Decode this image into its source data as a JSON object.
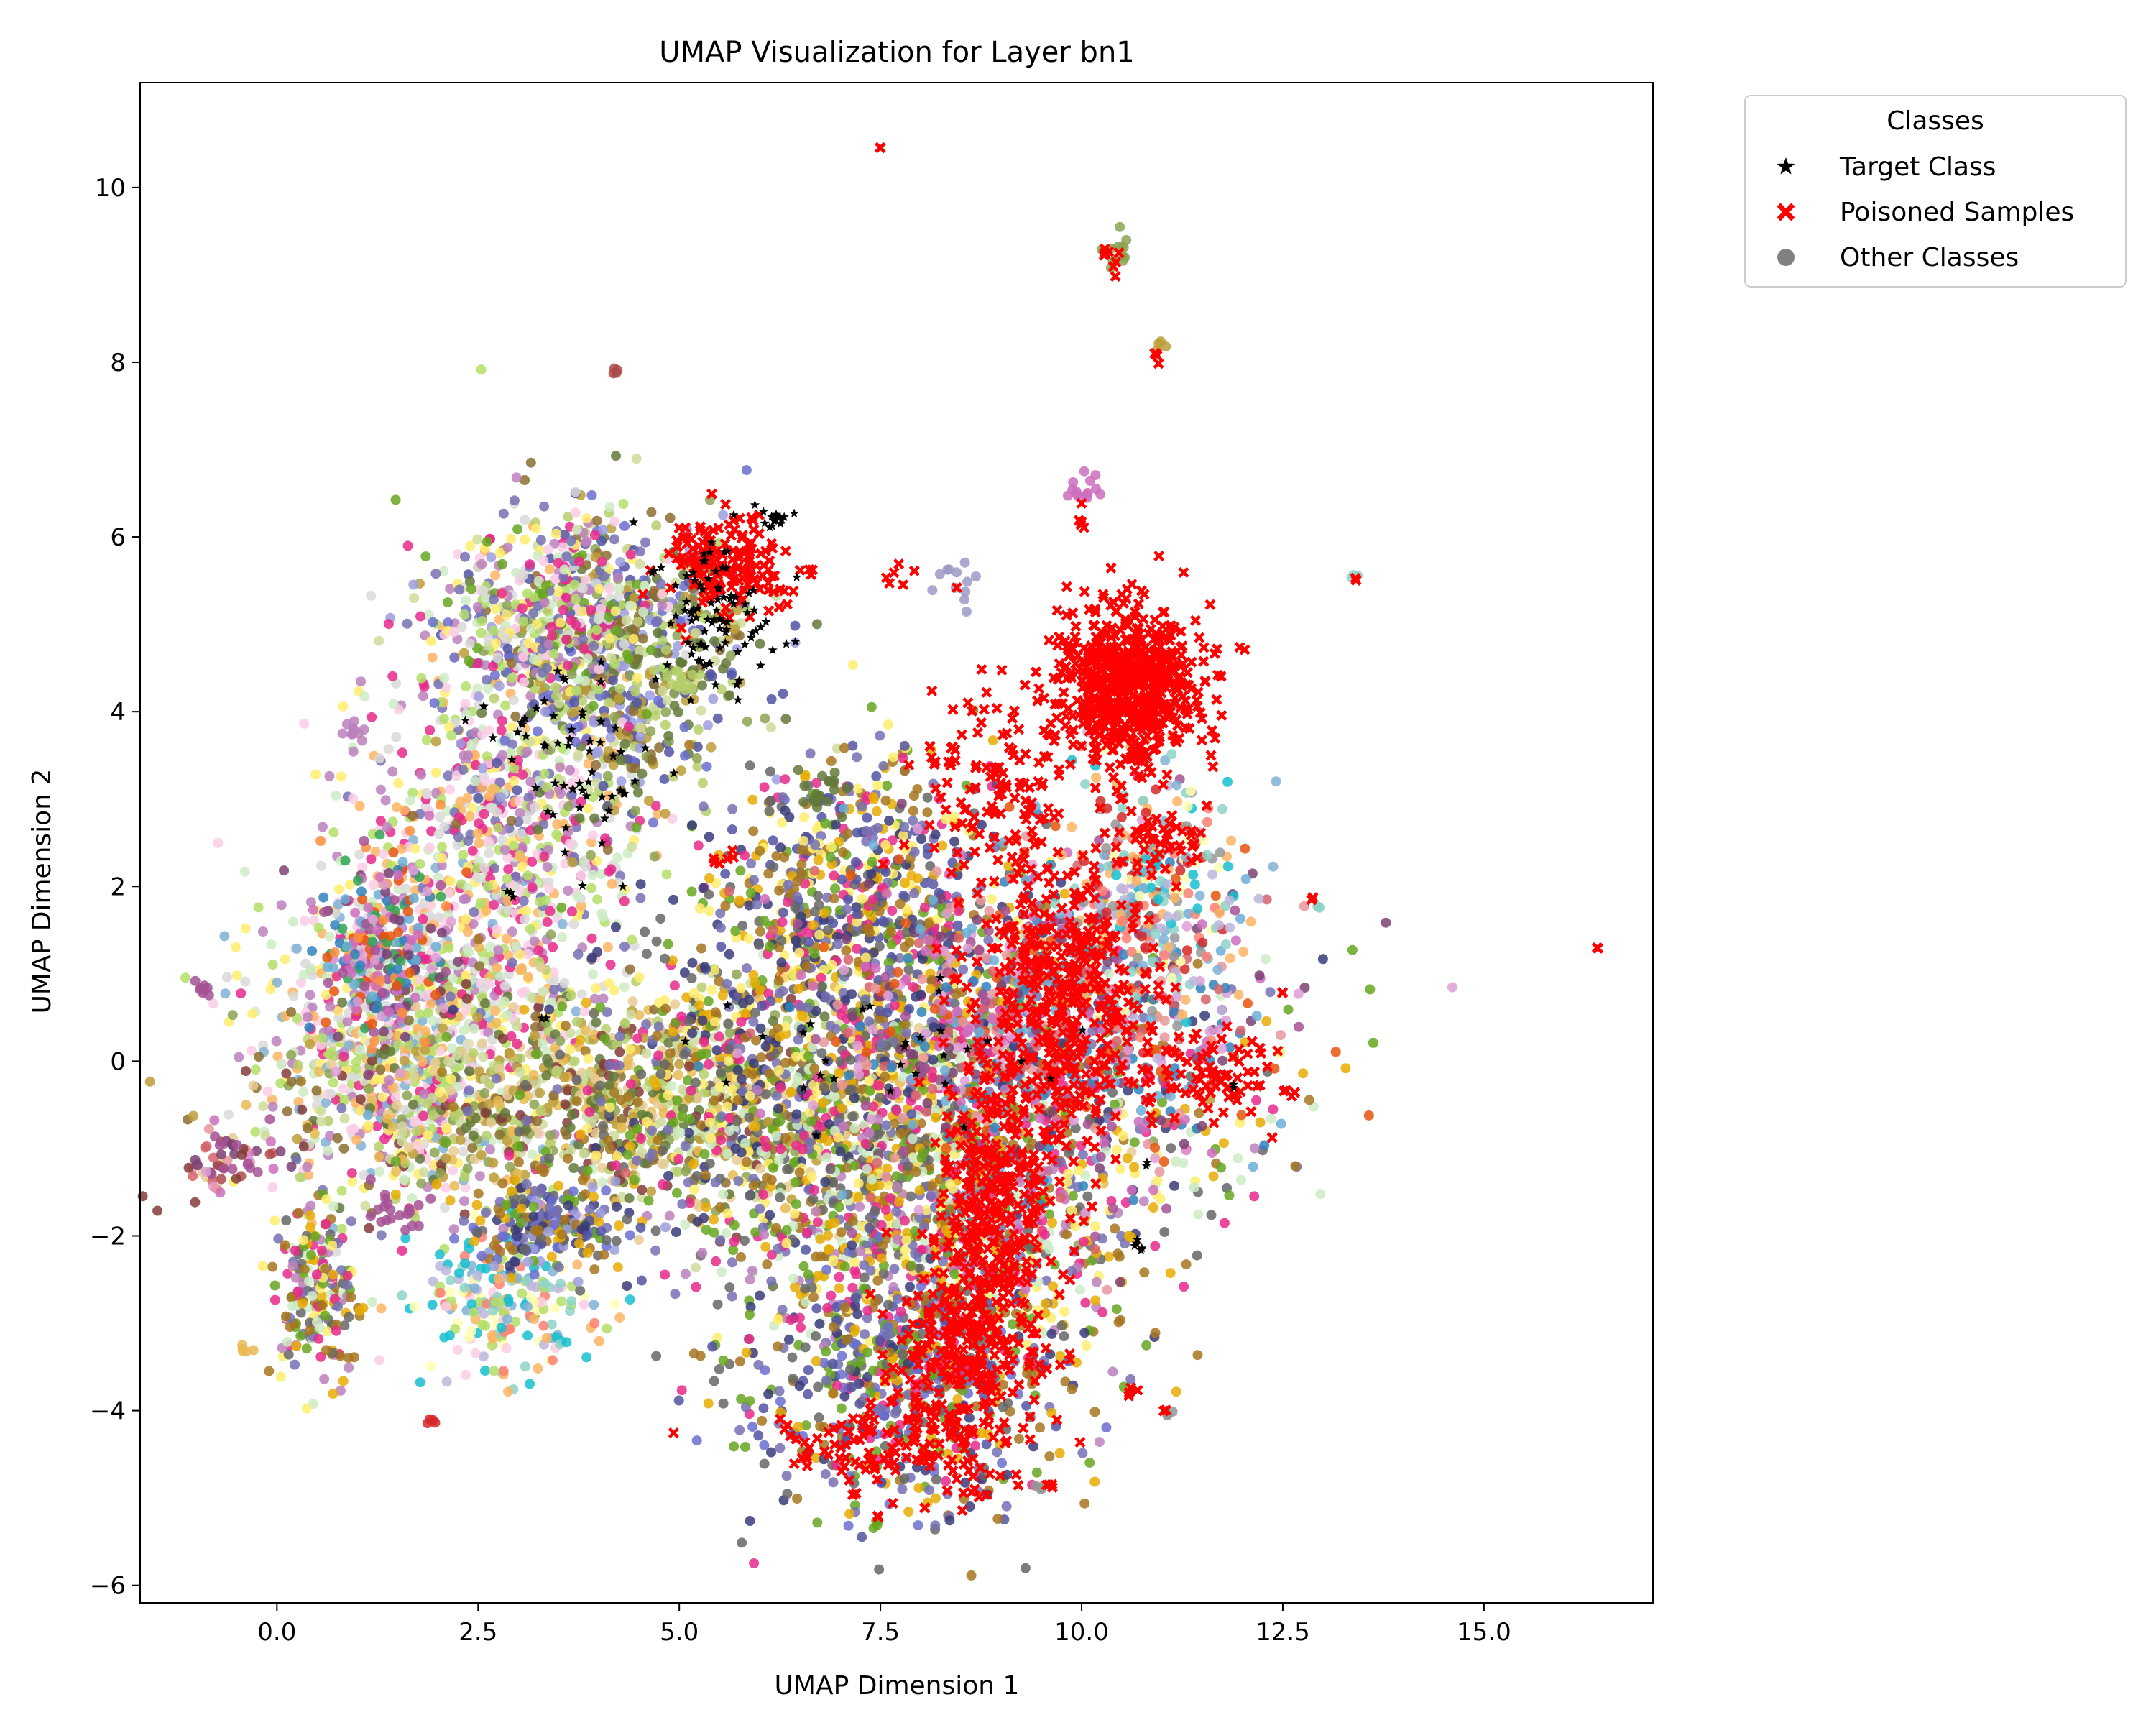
{
  "chart_data": {
    "type": "scatter",
    "title": "UMAP Visualization for Layer bn1",
    "xlabel": "UMAP Dimension 1",
    "ylabel": "UMAP Dimension 2",
    "xlim": [
      -1.7,
      17.1
    ],
    "ylim": [
      -6.2,
      11.2
    ],
    "xticks": [
      0.0,
      2.5,
      5.0,
      7.5,
      10.0,
      12.5,
      15.0
    ],
    "xtick_labels": [
      "0.0",
      "2.5",
      "5.0",
      "7.5",
      "10.0",
      "12.5",
      "15.0"
    ],
    "yticks": [
      -6,
      -4,
      -2,
      0,
      2,
      4,
      6,
      8,
      10
    ],
    "ytick_labels": [
      "−6",
      "−4",
      "−2",
      "0",
      "2",
      "4",
      "6",
      "8",
      "10"
    ],
    "grid": false,
    "legend": {
      "title": "Classes",
      "placement": "outside-top-right",
      "entries": [
        {
          "label": "Target Class",
          "marker": "star",
          "color": "#000000"
        },
        {
          "label": "Poisoned Samples",
          "marker": "x",
          "color": "#ff0000"
        },
        {
          "label": "Other Classes",
          "marker": "circle",
          "color": "#808080"
        }
      ]
    },
    "other_classes_palette": [
      "#bcb6dc",
      "#8dd3c7",
      "#ffffb3",
      "#fb8072",
      "#80b1d3",
      "#fdb462",
      "#b3de69",
      "#fccde5",
      "#d9d9d9",
      "#bc80bd",
      "#ccebc5",
      "#ffed6f",
      "#e7298a",
      "#7570b3",
      "#66a61e",
      "#e6ab02",
      "#a6761d",
      "#666666",
      "#393b79",
      "#5254a3",
      "#6b6ecf",
      "#9c9ede",
      "#637939",
      "#8ca252",
      "#b5cf6b",
      "#cedb9c",
      "#8c6d31",
      "#bd9e39",
      "#e7ba52",
      "#e7cb94",
      "#843c39",
      "#ad494a",
      "#d6616b",
      "#e7969c",
      "#7b4173",
      "#a55194",
      "#ce6dbd",
      "#de9ed6",
      "#3182bd",
      "#6baed6",
      "#e6550d",
      "#fd8d3c",
      "#31a354",
      "#74c476",
      "#756bb1",
      "#9e9ac8",
      "#636363",
      "#969696",
      "#d62728",
      "#17becf"
    ],
    "series": [
      {
        "name": "Other Classes",
        "color": "#808080",
        "clusters": [
          {
            "cx": 1.6,
            "cy": 0.3,
            "sx": 0.9,
            "sy": 1.0,
            "n": 900
          },
          {
            "cx": 2.8,
            "cy": 2.6,
            "sx": 0.8,
            "sy": 1.3,
            "n": 800
          },
          {
            "cx": 4.2,
            "cy": 4.5,
            "sx": 0.9,
            "sy": 0.8,
            "n": 700
          },
          {
            "cx": 3.5,
            "cy": 5.2,
            "sx": 0.7,
            "sy": 0.5,
            "n": 350
          },
          {
            "cx": 4.5,
            "cy": -0.5,
            "sx": 2.0,
            "sy": 0.6,
            "n": 1100
          },
          {
            "cx": 7.5,
            "cy": -0.3,
            "sx": 2.2,
            "sy": 0.9,
            "n": 1400
          },
          {
            "cx": 7.2,
            "cy": 1.8,
            "sx": 1.0,
            "sy": 0.9,
            "n": 700
          },
          {
            "cx": 8.2,
            "cy": -2.0,
            "sx": 1.4,
            "sy": 0.8,
            "n": 700
          },
          {
            "cx": 7.8,
            "cy": -3.6,
            "sx": 1.0,
            "sy": 0.8,
            "n": 600
          },
          {
            "cx": 9.5,
            "cy": 0.5,
            "sx": 1.3,
            "sy": 1.0,
            "n": 700
          },
          {
            "cx": 10.8,
            "cy": 1.9,
            "sx": 0.6,
            "sy": 0.8,
            "n": 300
          },
          {
            "cx": 0.5,
            "cy": -2.6,
            "sx": 0.25,
            "sy": 0.5,
            "n": 200
          },
          {
            "cx": 2.9,
            "cy": -2.8,
            "sx": 0.5,
            "sy": 0.4,
            "n": 220
          },
          {
            "cx": 3.4,
            "cy": -1.9,
            "sx": 0.5,
            "sy": 0.25,
            "n": 200
          },
          {
            "cx": -0.6,
            "cy": -1.1,
            "sx": 0.3,
            "sy": 0.2,
            "n": 60
          },
          {
            "cx": 1.3,
            "cy": 1.3,
            "sx": 0.4,
            "sy": 0.6,
            "n": 250
          }
        ],
        "small_groups": [
          [
            -0.9,
            0.85,
            0.05,
            0.05,
            8
          ],
          [
            0.95,
            3.75,
            0.1,
            0.1,
            12
          ],
          [
            4.2,
            7.9,
            0.03,
            0.03,
            4
          ],
          [
            10.45,
            9.3,
            0.15,
            0.15,
            14
          ],
          [
            10.95,
            8.2,
            0.04,
            0.04,
            4
          ],
          [
            10.0,
            6.5,
            0.12,
            0.2,
            14
          ],
          [
            8.5,
            5.5,
            0.15,
            0.15,
            12
          ],
          [
            -0.4,
            -3.3,
            0.04,
            0.03,
            5
          ],
          [
            1.9,
            -4.1,
            0.04,
            0.05,
            4
          ],
          [
            7.45,
            -5.25,
            0.03,
            0.06,
            4
          ],
          [
            13.4,
            5.55,
            0.03,
            0.03,
            3
          ],
          [
            12.95,
            1.75,
            0.03,
            0.03,
            3
          ],
          [
            6.8,
            3.1,
            0.2,
            0.15,
            20
          ],
          [
            5.0,
            4.4,
            0.15,
            0.1,
            15
          ],
          [
            1.5,
            -1.7,
            0.2,
            0.15,
            20
          ],
          [
            11.1,
            -4.05,
            0.03,
            0.03,
            3
          ],
          [
            9.5,
            -4.85,
            0.05,
            0.03,
            4
          ]
        ]
      },
      {
        "name": "Poisoned Samples",
        "color": "#ff0000",
        "clusters": [
          {
            "cx": 10.6,
            "cy": 4.3,
            "sx": 0.45,
            "sy": 0.45,
            "n": 650
          },
          {
            "cx": 9.8,
            "cy": 0.7,
            "sx": 0.55,
            "sy": 0.9,
            "n": 450
          },
          {
            "cx": 8.9,
            "cy": -1.6,
            "sx": 0.35,
            "sy": 0.8,
            "n": 300
          },
          {
            "cx": 8.6,
            "cy": -3.3,
            "sx": 0.5,
            "sy": 0.6,
            "n": 250
          },
          {
            "cx": 7.7,
            "cy": -4.4,
            "sx": 0.7,
            "sy": 0.25,
            "n": 120
          },
          {
            "cx": 5.6,
            "cy": 5.7,
            "sx": 0.35,
            "sy": 0.3,
            "n": 160
          },
          {
            "cx": 11.6,
            "cy": -0.2,
            "sx": 0.45,
            "sy": 0.25,
            "n": 80
          },
          {
            "cx": 8.9,
            "cy": 3.3,
            "sx": 0.5,
            "sy": 0.6,
            "n": 120
          },
          {
            "cx": 11.0,
            "cy": 2.5,
            "sx": 0.3,
            "sy": 0.2,
            "n": 40
          }
        ],
        "small_groups": [
          [
            7.5,
            10.45,
            0.01,
            0.01,
            2
          ],
          [
            10.4,
            9.2,
            0.1,
            0.1,
            10
          ],
          [
            10.95,
            8.1,
            0.03,
            0.05,
            4
          ],
          [
            16.4,
            1.3,
            0.01,
            0.01,
            2
          ],
          [
            13.4,
            5.5,
            0.02,
            0.02,
            2
          ],
          [
            12.85,
            1.85,
            0.02,
            0.02,
            2
          ],
          [
            12.5,
            0.8,
            0.02,
            0.02,
            2
          ],
          [
            10.0,
            6.3,
            0.05,
            0.08,
            5
          ],
          [
            7.7,
            5.55,
            0.1,
            0.05,
            6
          ],
          [
            7.45,
            -5.2,
            0.02,
            0.02,
            2
          ],
          [
            9.6,
            -4.85,
            0.04,
            0.03,
            4
          ],
          [
            11.05,
            -4.0,
            0.02,
            0.02,
            2
          ],
          [
            10.6,
            -3.8,
            0.05,
            0.05,
            4
          ],
          [
            5.5,
            2.3,
            0.1,
            0.05,
            6
          ],
          [
            6.6,
            5.6,
            0.1,
            0.03,
            4
          ]
        ]
      },
      {
        "name": "Target Class",
        "color": "#000000",
        "clusters": [
          {
            "cx": 5.4,
            "cy": 5.0,
            "sx": 0.4,
            "sy": 0.45,
            "n": 90
          },
          {
            "cx": 3.8,
            "cy": 3.4,
            "sx": 0.5,
            "sy": 0.5,
            "n": 60
          },
          {
            "cx": 7.3,
            "cy": 0.2,
            "sx": 1.3,
            "sy": 0.5,
            "n": 30
          },
          {
            "cx": 6.2,
            "cy": 6.2,
            "sx": 0.12,
            "sy": 0.08,
            "n": 15
          }
        ],
        "small_groups": [
          [
            10.7,
            -2.1,
            0.05,
            0.05,
            6
          ],
          [
            10.8,
            -1.15,
            0.02,
            0.02,
            2
          ],
          [
            11.9,
            -0.3,
            0.02,
            0.02,
            2
          ],
          [
            3.3,
            0.5,
            0.02,
            0.02,
            2
          ],
          [
            2.9,
            1.9,
            0.05,
            0.05,
            3
          ]
        ]
      }
    ]
  }
}
